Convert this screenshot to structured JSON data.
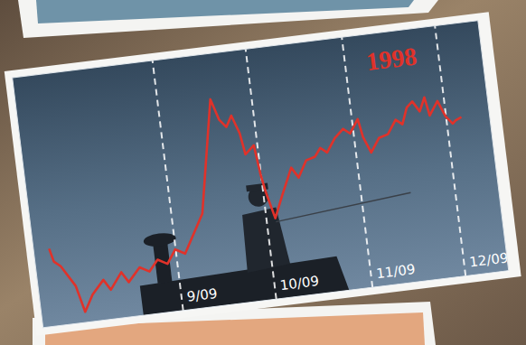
{
  "chart_data": {
    "type": "line",
    "title": "1998",
    "x": [
      -9,
      -8,
      -6,
      -2,
      0,
      3,
      7,
      9,
      13,
      15,
      19,
      22,
      25,
      28,
      31,
      34,
      38,
      41,
      48,
      50,
      52,
      54,
      56,
      57,
      60,
      61,
      62,
      64,
      67,
      71,
      73,
      76,
      79,
      81,
      83,
      86,
      89,
      91,
      94,
      95,
      97,
      100,
      103,
      106,
      108,
      110,
      112,
      114,
      116,
      117,
      120,
      122,
      124,
      125,
      127
    ],
    "values": [
      35,
      30,
      28,
      20,
      10,
      16,
      21,
      17,
      23,
      19,
      24,
      22,
      26,
      24,
      29,
      27,
      35,
      41,
      83,
      75,
      72,
      76,
      69,
      61,
      64,
      53,
      46,
      36,
      44,
      54,
      50,
      56,
      57,
      60,
      58,
      63,
      66,
      64,
      69,
      62,
      56,
      61,
      62,
      67,
      65,
      71,
      73,
      69,
      74,
      67,
      72,
      66,
      63,
      64,
      65
    ],
    "color": "#e0322a",
    "xlim": [
      -14,
      136
    ],
    "ylim": [
      6,
      100
    ],
    "xticks": [
      {
        "value": 31,
        "label": "9/09"
      },
      {
        "value": 61,
        "label": "10/09"
      },
      {
        "value": 92,
        "label": "11/09"
      },
      {
        "value": 122,
        "label": "12/09"
      }
    ],
    "grid": true,
    "tick_labels": "x"
  }
}
